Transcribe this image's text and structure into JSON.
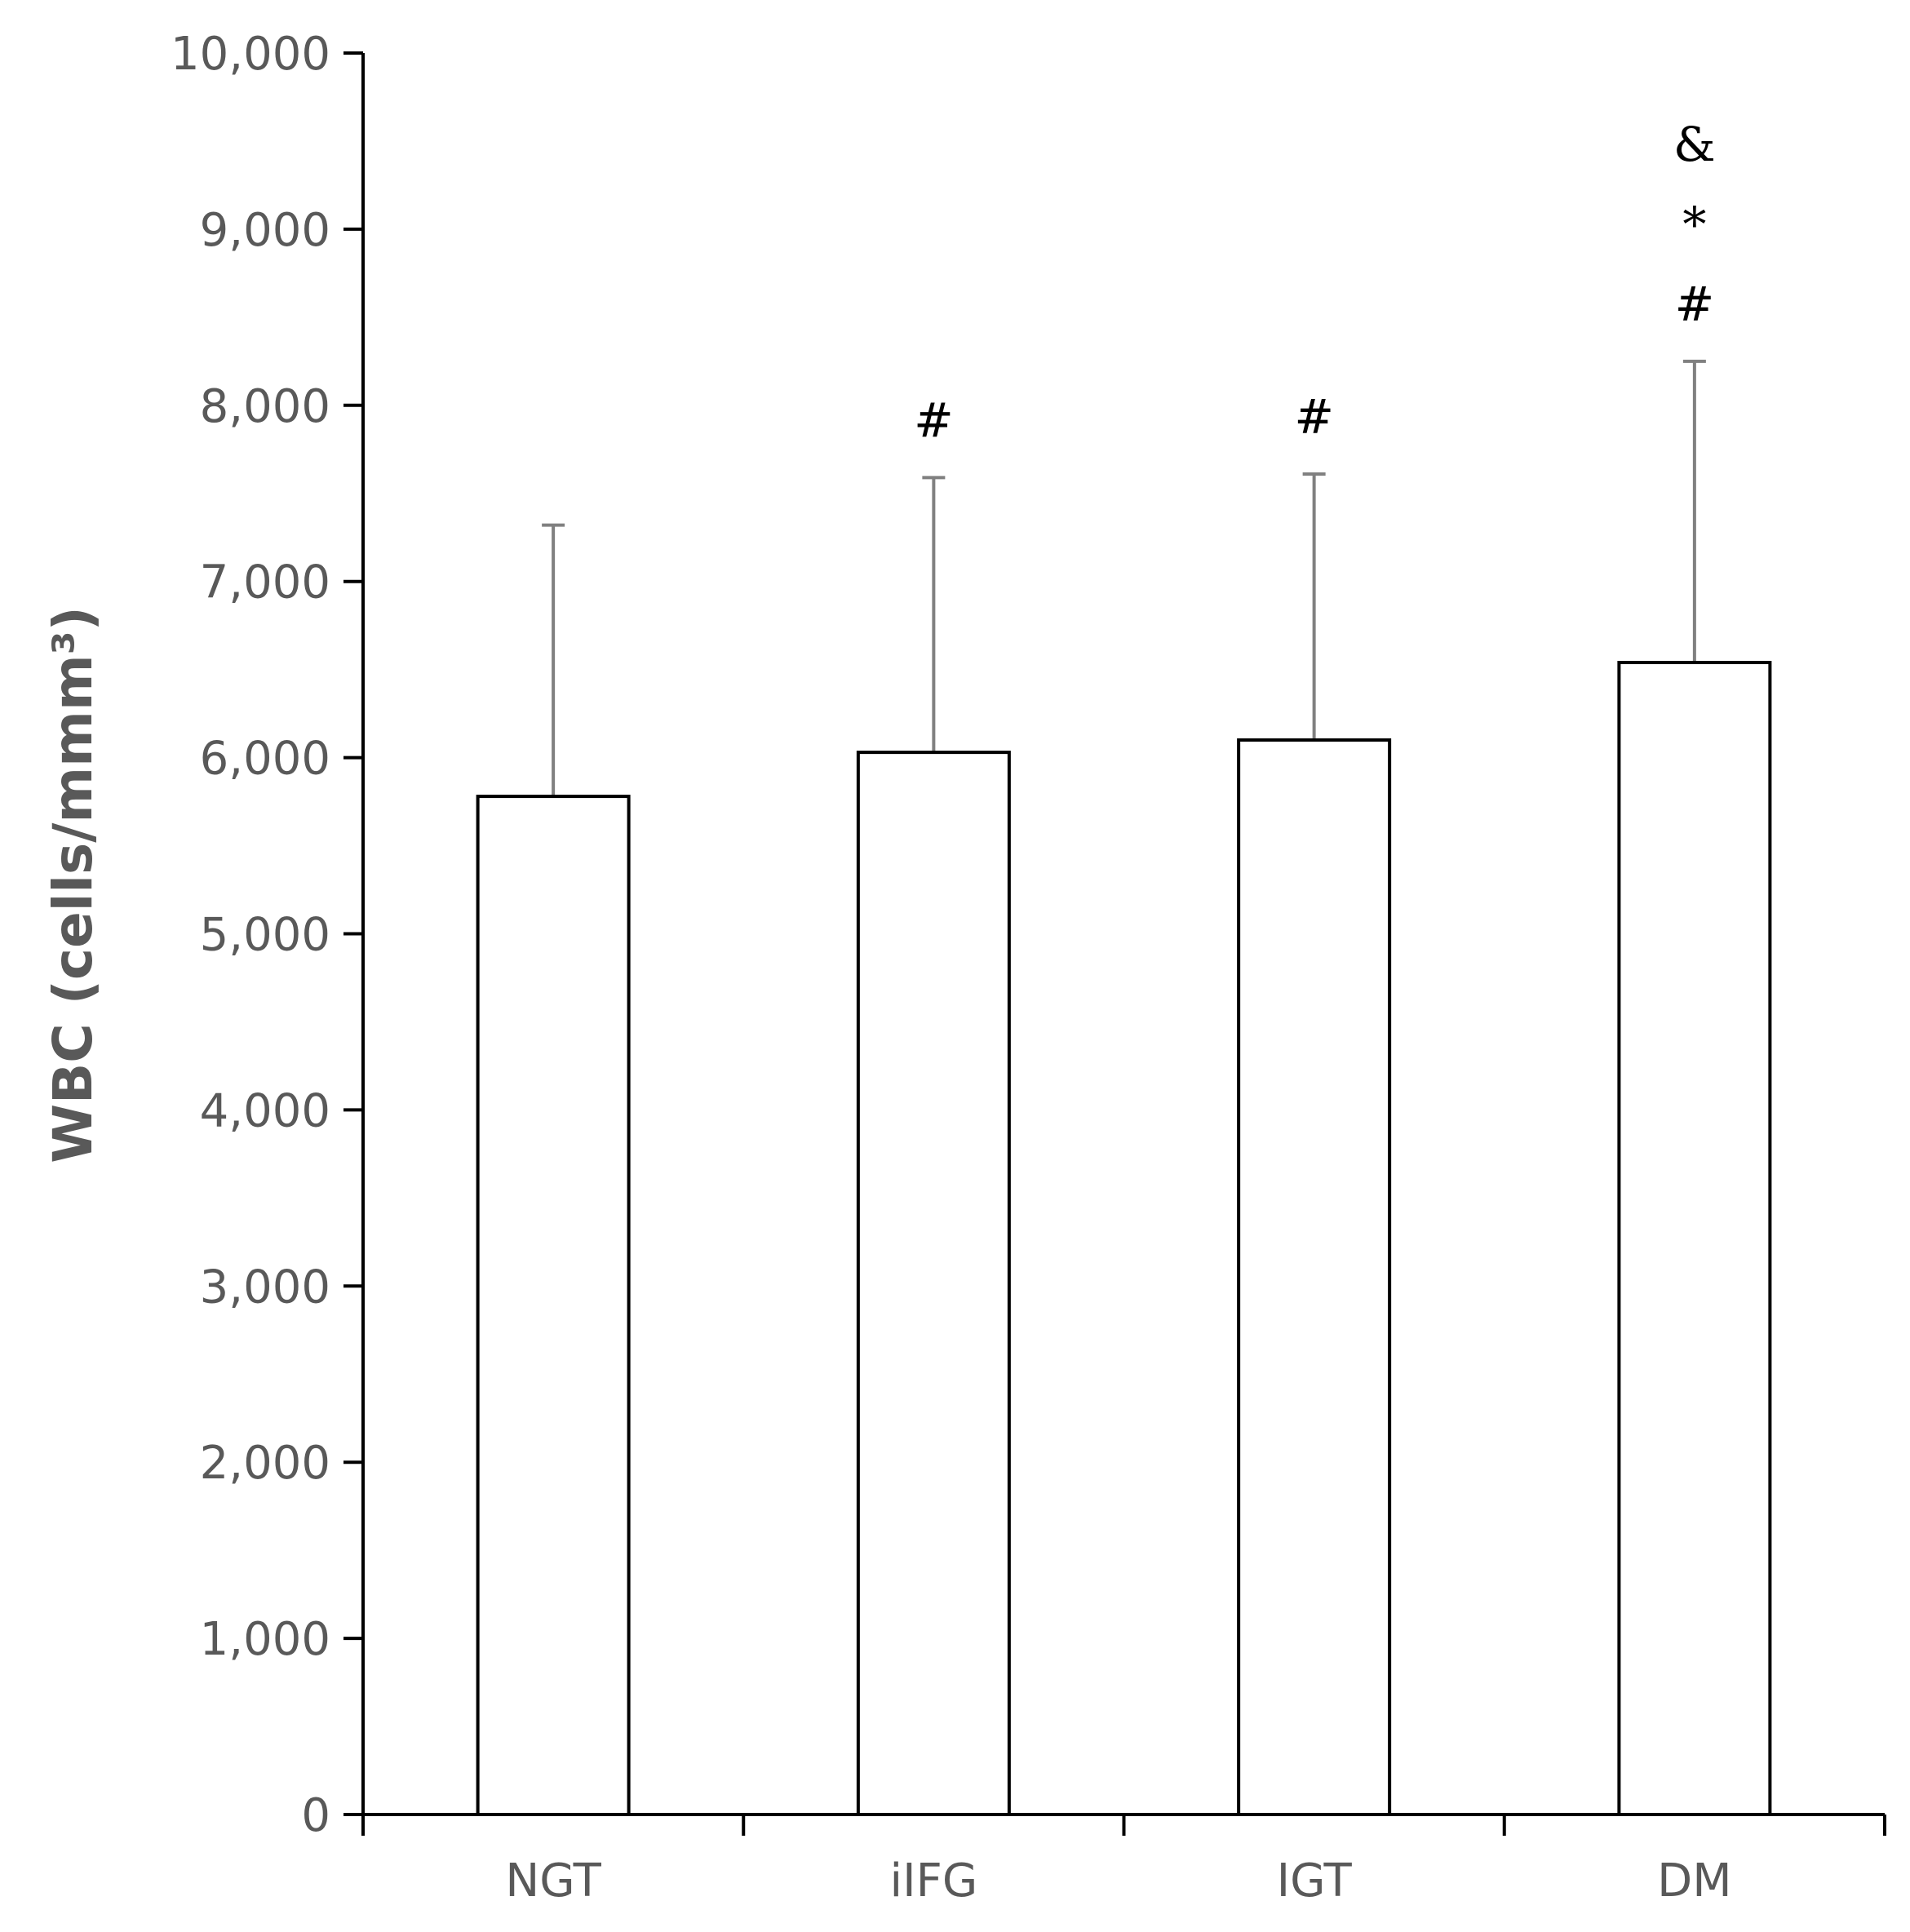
{
  "chart_data": {
    "type": "bar",
    "categories": [
      "NGT",
      "iIFG",
      "IGT",
      "DM"
    ],
    "values": [
      5780,
      6030,
      6100,
      6540
    ],
    "error_upper": [
      7320,
      7590,
      7610,
      8250
    ],
    "annotations": [
      [],
      [
        "#"
      ],
      [
        "#"
      ],
      [
        "#",
        "*",
        "&"
      ]
    ],
    "ylabel": "WBC (cells/mmm³)",
    "xlabel": "",
    "ylim": [
      0,
      10000
    ],
    "yticks": [
      0,
      1000,
      2000,
      3000,
      4000,
      5000,
      6000,
      7000,
      8000,
      9000,
      10000
    ],
    "ytick_labels": [
      "0",
      "1,000",
      "2,000",
      "3,000",
      "4,000",
      "5,000",
      "6,000",
      "7,000",
      "8,000",
      "9,000",
      "10,000"
    ],
    "grid": false,
    "legend": "none",
    "colors": {
      "bar_fill": "#ffffff",
      "bar_stroke": "#000000",
      "axis": "#000000",
      "error_bar": "#808080",
      "text": "#595959"
    }
  }
}
